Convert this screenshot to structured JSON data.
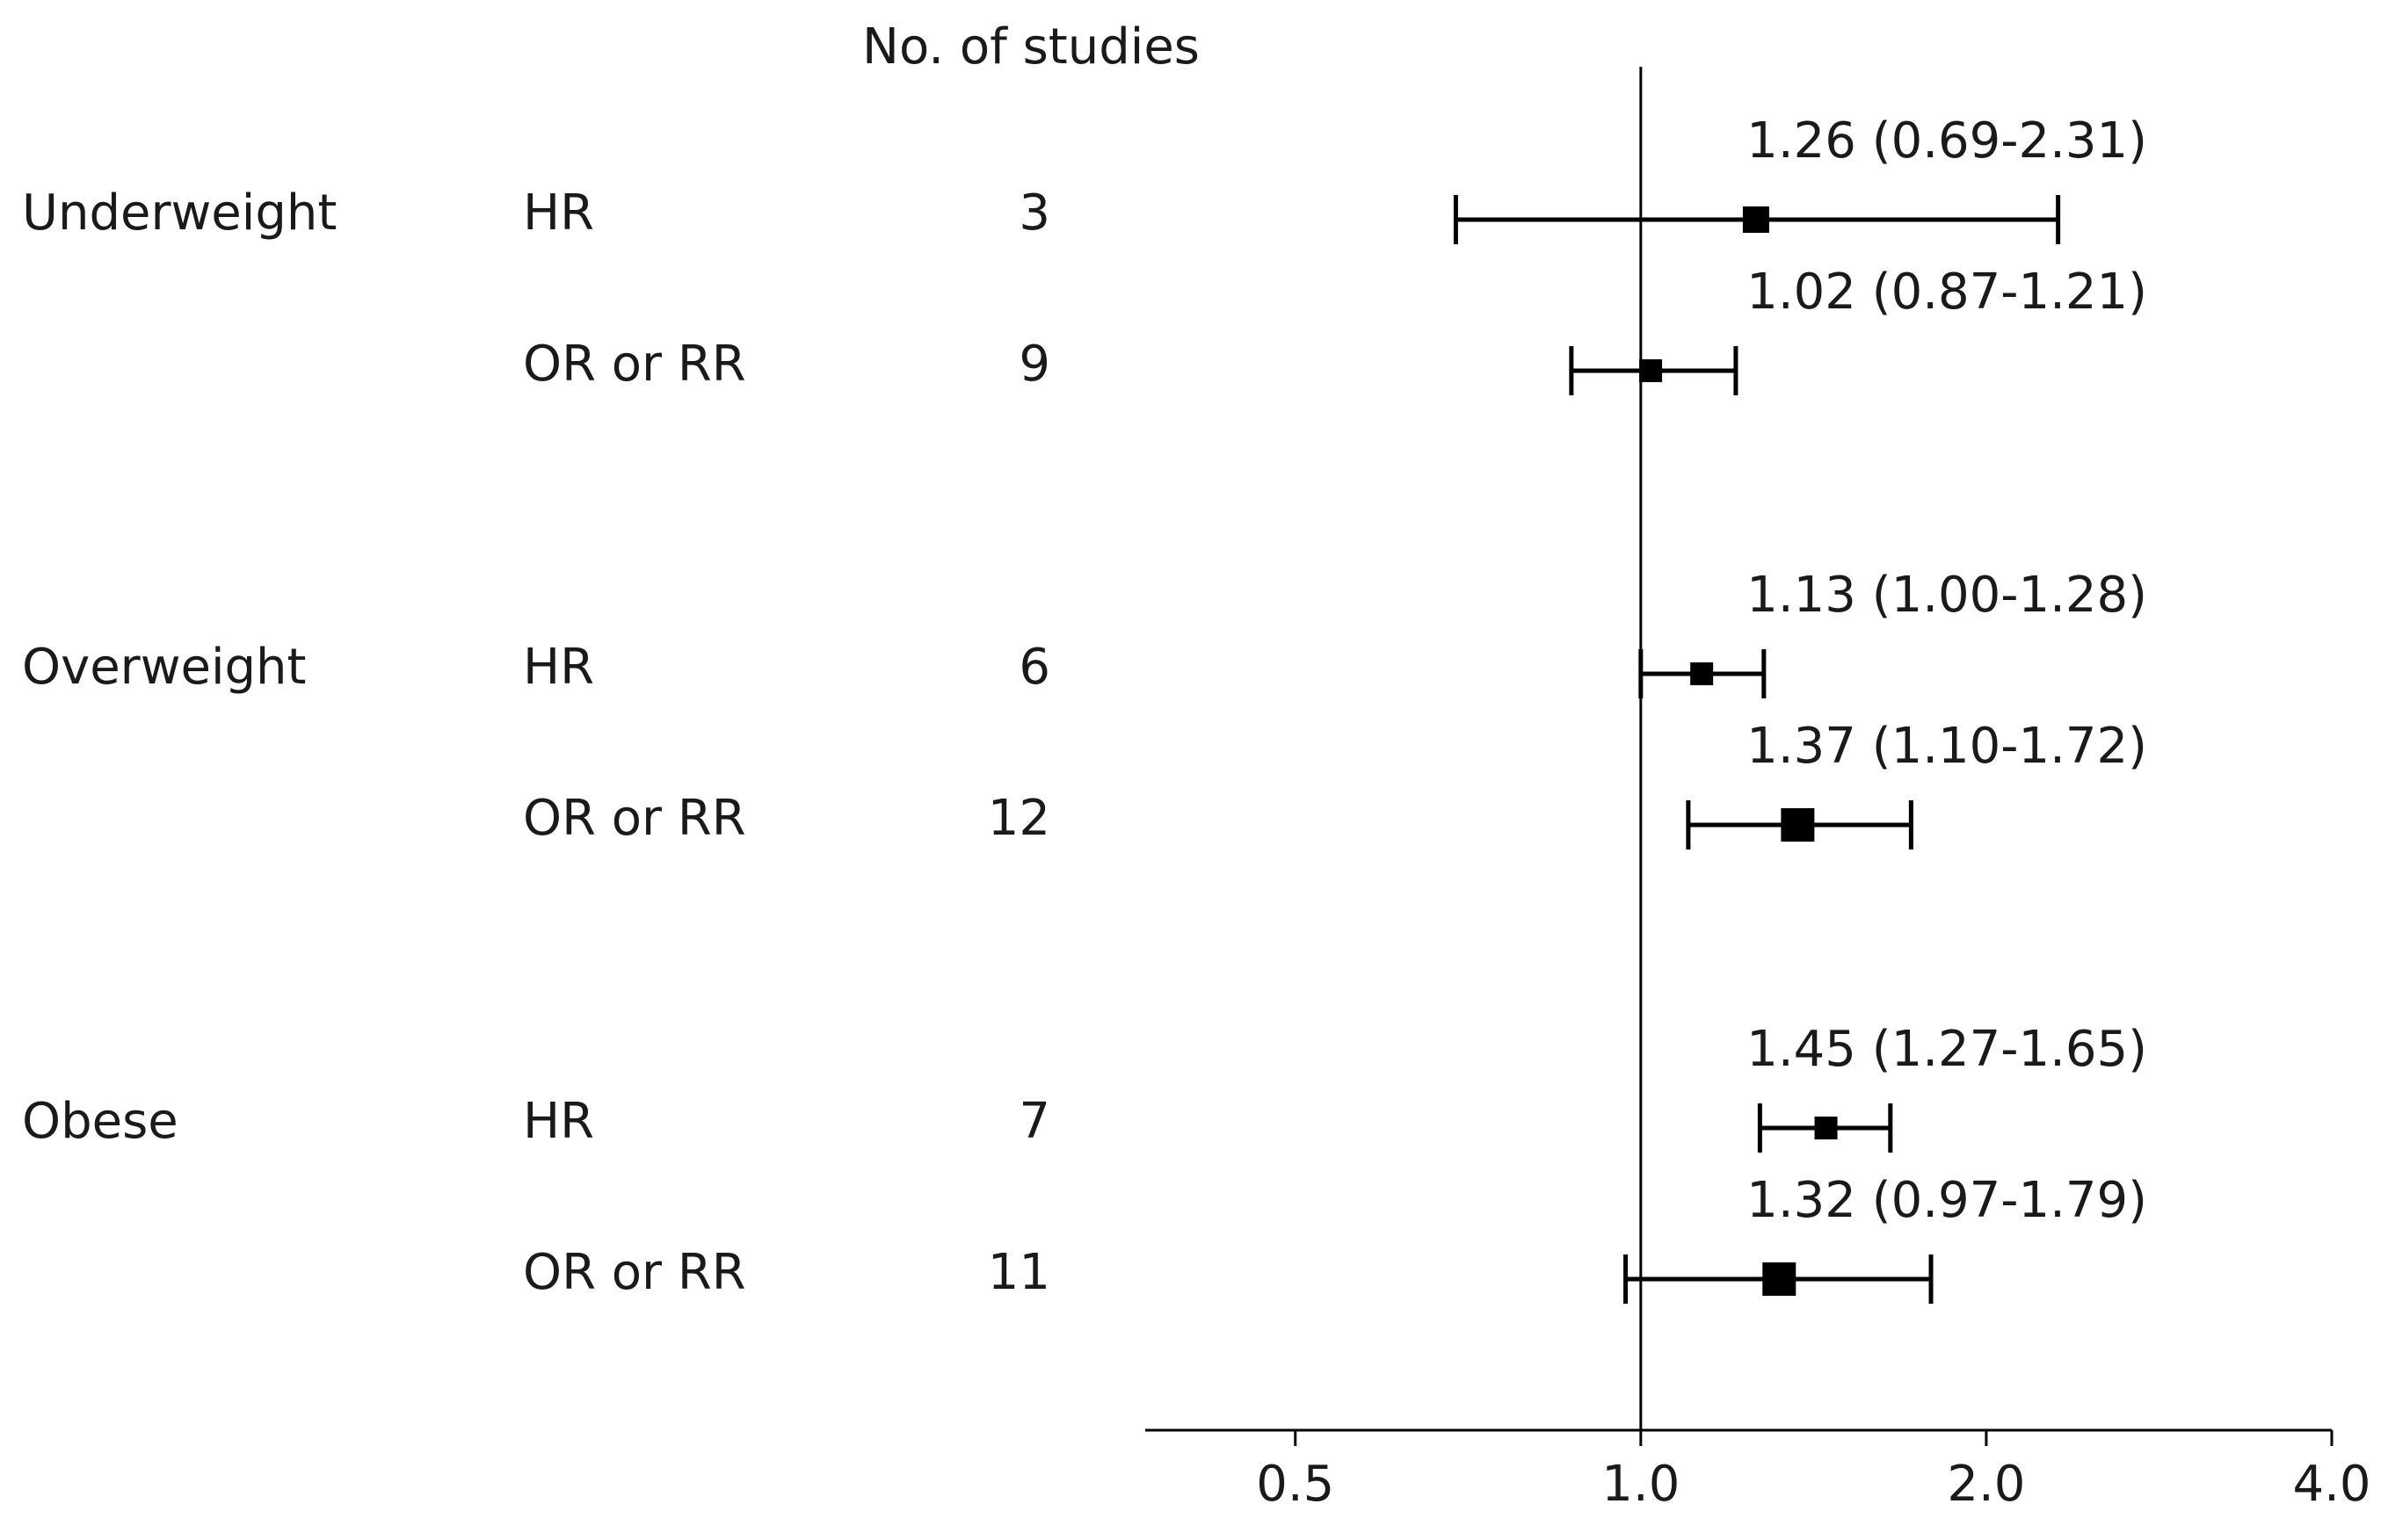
{
  "chart_data": {
    "type": "forest",
    "header": "No. of studies",
    "x_scale": "log2",
    "xlim": [
      0.37,
      4.0
    ],
    "x_ticks": [
      0.5,
      1.0,
      2.0,
      4.0
    ],
    "x_tick_labels": [
      "0.5",
      "1.0",
      "2.0",
      "4.0"
    ],
    "reference_line": 1.0,
    "marker_color": "#000000",
    "groups": [
      {
        "name": "Underweight",
        "rows": [
          {
            "measure": "HR",
            "n_studies": "3",
            "estimate": 1.26,
            "lower": 0.69,
            "upper": 2.31,
            "label": "1.26 (0.69-2.31)"
          },
          {
            "measure": "OR or RR",
            "n_studies": "9",
            "estimate": 1.02,
            "lower": 0.87,
            "upper": 1.21,
            "label": "1.02 (0.87-1.21)"
          }
        ]
      },
      {
        "name": "Overweight",
        "rows": [
          {
            "measure": "HR",
            "n_studies": "6",
            "estimate": 1.13,
            "lower": 1.0,
            "upper": 1.28,
            "label": "1.13 (1.00-1.28)"
          },
          {
            "measure": "OR or RR",
            "n_studies": "12",
            "estimate": 1.37,
            "lower": 1.1,
            "upper": 1.72,
            "label": "1.37 (1.10-1.72)"
          }
        ]
      },
      {
        "name": "Obese",
        "rows": [
          {
            "measure": "HR",
            "n_studies": "7",
            "estimate": 1.45,
            "lower": 1.27,
            "upper": 1.65,
            "label": "1.45 (1.27-1.65)"
          },
          {
            "measure": "OR or RR",
            "n_studies": "11",
            "estimate": 1.32,
            "lower": 0.97,
            "upper": 1.79,
            "label": "1.32 (0.97-1.79)"
          }
        ]
      }
    ]
  }
}
